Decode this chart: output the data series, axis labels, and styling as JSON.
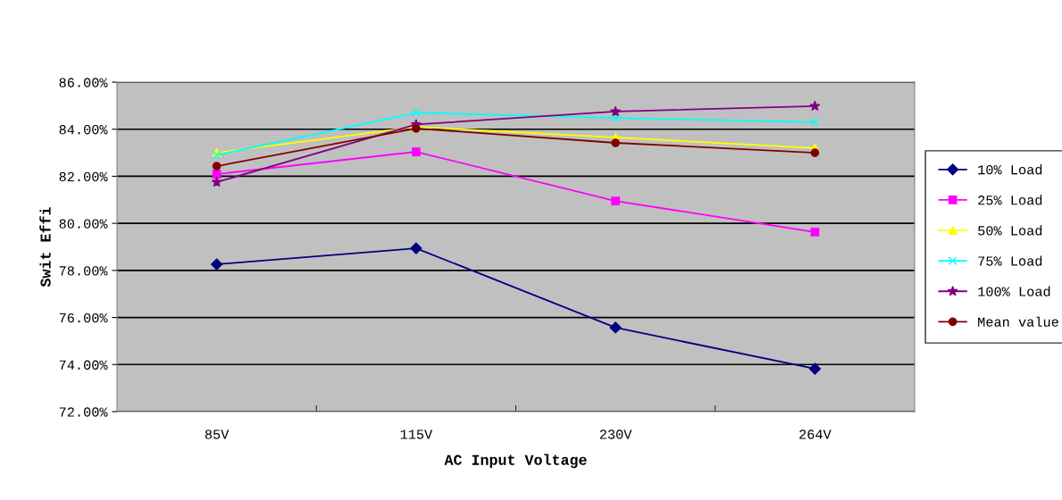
{
  "chart_data": {
    "type": "line",
    "xlabel": "AC Input Voltage",
    "ylabel": "Swit Effi",
    "categories": [
      "85V",
      "115V",
      "230V",
      "264V"
    ],
    "ylim": [
      72,
      86
    ],
    "yticks": [
      {
        "value": 72,
        "label": "72.00%"
      },
      {
        "value": 74,
        "label": "74.00%"
      },
      {
        "value": 76,
        "label": "76.00%"
      },
      {
        "value": 78,
        "label": "78.00%"
      },
      {
        "value": 80,
        "label": "80.00%"
      },
      {
        "value": 82,
        "label": "82.00%"
      },
      {
        "value": 84,
        "label": "84.00%"
      },
      {
        "value": 86,
        "label": "86.00%"
      }
    ],
    "grid": "y",
    "legend": "right",
    "series": [
      {
        "name": "10% Load",
        "color": "#000080",
        "marker": "diamond",
        "values": [
          78.26,
          78.94,
          75.57,
          73.82
        ]
      },
      {
        "name": "25% Load",
        "color": "#ff00ff",
        "marker": "square",
        "values": [
          82.09,
          83.04,
          80.95,
          79.63
        ]
      },
      {
        "name": "50% Load",
        "color": "#ffff00",
        "marker": "triangle",
        "values": [
          83.0,
          84.1,
          83.65,
          83.2
        ]
      },
      {
        "name": "75% Load",
        "color": "#00ffff",
        "marker": "cross",
        "values": [
          82.9,
          84.7,
          84.48,
          84.3
        ]
      },
      {
        "name": "100% Load",
        "color": "#800080",
        "marker": "star",
        "values": [
          81.75,
          84.2,
          84.75,
          84.98
        ]
      },
      {
        "name": "Mean value",
        "color": "#800000",
        "marker": "circle",
        "values": [
          82.43,
          84.03,
          83.42,
          83.0
        ]
      }
    ]
  }
}
